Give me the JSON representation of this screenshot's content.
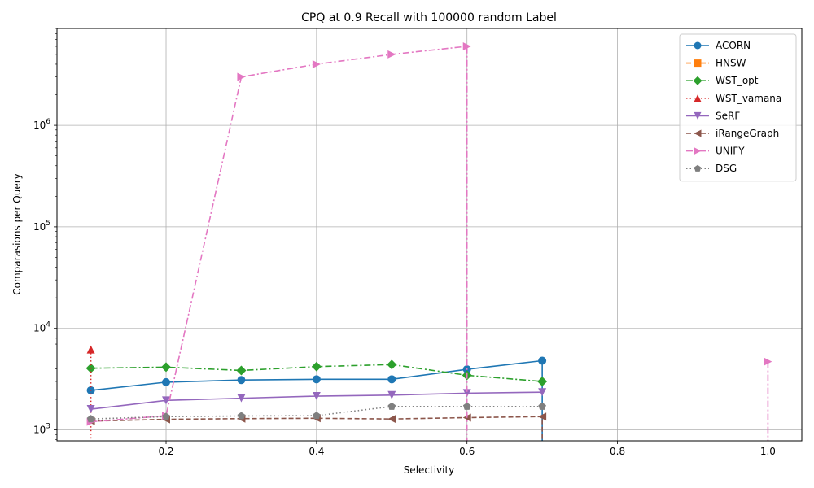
{
  "chart_data": {
    "type": "line",
    "title": "CPQ at 0.9 Recall with 100000 random Label",
    "xlabel": "Selectivity",
    "ylabel": "Comparasions per Query",
    "yscale": "log",
    "xlim": [
      0.055,
      1.045
    ],
    "ylim": [
      780,
      9000000
    ],
    "grid": true,
    "legend_position": "top-right",
    "xticks": [
      0.2,
      0.4,
      0.6,
      0.8,
      1.0
    ],
    "xtick_labels": [
      "0.2",
      "0.4",
      "0.6",
      "0.8",
      "1.0"
    ],
    "yticks": [
      1000,
      10000,
      100000,
      1000000
    ],
    "ytick_labels": [
      {
        "base": "10",
        "exp": "3"
      },
      {
        "base": "10",
        "exp": "4"
      },
      {
        "base": "10",
        "exp": "5"
      },
      {
        "base": "10",
        "exp": "6"
      }
    ],
    "series": [
      {
        "name": "ACORN",
        "color": "#1f77b4",
        "dash": "solid",
        "marker": "circle",
        "x": [
          0.1,
          0.2,
          0.3,
          0.4,
          0.5,
          0.6,
          0.7,
          0.7
        ],
        "y": [
          2450,
          2950,
          3100,
          3150,
          3150,
          3950,
          4800,
          null
        ]
      },
      {
        "name": "HNSW",
        "color": "#ff7f0e",
        "dash": "dashed",
        "marker": "square",
        "x": [],
        "y": []
      },
      {
        "name": "WST_opt",
        "color": "#2ca02c",
        "dash": "dashdot",
        "marker": "diamond",
        "x": [
          0.1,
          0.2,
          0.3,
          0.4,
          0.5,
          0.6,
          0.7
        ],
        "y": [
          4050,
          4150,
          3850,
          4200,
          4400,
          3450,
          3000
        ]
      },
      {
        "name": "WST_vamana",
        "color": "#d62728",
        "dash": "dotted",
        "marker": "triangle-up",
        "x": [
          0.1,
          0.1
        ],
        "y": [
          6200,
          null
        ]
      },
      {
        "name": "SeRF",
        "color": "#9467bd",
        "dash": "solid",
        "marker": "triangle-down",
        "x": [
          0.1,
          0.2,
          0.3,
          0.4,
          0.5,
          0.6,
          0.7
        ],
        "y": [
          1600,
          1950,
          2050,
          2150,
          2200,
          2300,
          2350
        ]
      },
      {
        "name": "iRangeGraph",
        "color": "#8c564b",
        "dash": "dashed",
        "marker": "triangle-left",
        "x": [
          0.1,
          0.2,
          0.3,
          0.4,
          0.5,
          0.6,
          0.7,
          0.7
        ],
        "y": [
          1220,
          1270,
          1290,
          1300,
          1280,
          1320,
          1350,
          null
        ]
      },
      {
        "name": "UNIFY",
        "color": "#e377c2",
        "dash": "dashdot",
        "marker": "triangle-right",
        "x": [
          0.1,
          0.2,
          0.3,
          0.4,
          0.5,
          0.6,
          0.6,
          null,
          1.0,
          1.0
        ],
        "y": [
          1200,
          1380,
          3000000,
          4000000,
          5000000,
          6000000,
          null,
          null,
          4700,
          null
        ]
      },
      {
        "name": "DSG",
        "color": "#7f7f7f",
        "dash": "dotted",
        "marker": "pentagon",
        "x": [
          0.1,
          0.2,
          0.3,
          0.4,
          0.5,
          0.6,
          0.7
        ],
        "y": [
          1280,
          1350,
          1370,
          1380,
          1700,
          1700,
          1700
        ]
      }
    ]
  }
}
